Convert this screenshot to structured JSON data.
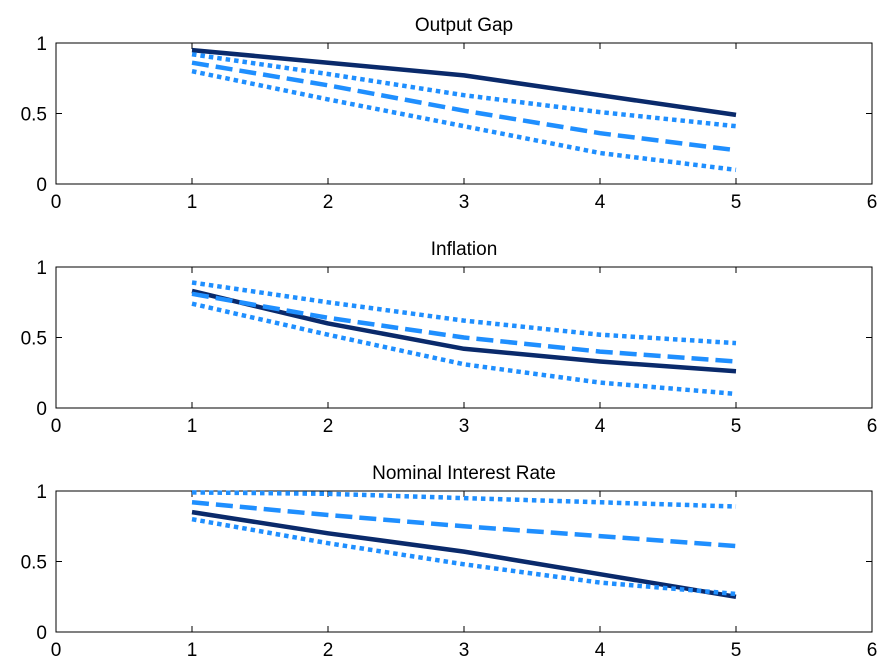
{
  "chart_data": [
    {
      "type": "line",
      "title": "Output Gap",
      "xlim": [
        0,
        6
      ],
      "ylim": [
        0,
        1
      ],
      "xticks": [
        "0",
        "1",
        "2",
        "3",
        "4",
        "5",
        "6"
      ],
      "yticks": [
        "0",
        "0.5",
        "1"
      ],
      "grid": false,
      "x": [
        1,
        2,
        3,
        4,
        5
      ],
      "series": [
        {
          "style": "solid",
          "color": "#0a2a6b",
          "values": [
            0.95,
            0.86,
            0.77,
            0.63,
            0.49
          ]
        },
        {
          "style": "dotted",
          "color": "#1f8fff",
          "values": [
            0.92,
            0.78,
            0.63,
            0.51,
            0.41
          ]
        },
        {
          "style": "dashed",
          "color": "#1f8fff",
          "values": [
            0.86,
            0.7,
            0.52,
            0.36,
            0.24
          ]
        },
        {
          "style": "dotted",
          "color": "#1f8fff",
          "values": [
            0.8,
            0.6,
            0.41,
            0.22,
            0.1
          ]
        }
      ]
    },
    {
      "type": "line",
      "title": "Inflation",
      "xlim": [
        0,
        6
      ],
      "ylim": [
        0,
        1
      ],
      "xticks": [
        "0",
        "1",
        "2",
        "3",
        "4",
        "5",
        "6"
      ],
      "yticks": [
        "0",
        "0.5",
        "1"
      ],
      "grid": false,
      "x": [
        1,
        2,
        3,
        4,
        5
      ],
      "series": [
        {
          "style": "solid",
          "color": "#0a2a6b",
          "values": [
            0.83,
            0.6,
            0.42,
            0.33,
            0.26
          ]
        },
        {
          "style": "dotted",
          "color": "#1f8fff",
          "values": [
            0.89,
            0.75,
            0.62,
            0.52,
            0.46
          ]
        },
        {
          "style": "dashed",
          "color": "#1f8fff",
          "values": [
            0.81,
            0.64,
            0.5,
            0.4,
            0.33
          ]
        },
        {
          "style": "dotted",
          "color": "#1f8fff",
          "values": [
            0.74,
            0.52,
            0.31,
            0.18,
            0.1
          ]
        }
      ]
    },
    {
      "type": "line",
      "title": "Nominal Interest Rate",
      "xlim": [
        0,
        6
      ],
      "ylim": [
        0,
        1
      ],
      "xticks": [
        "0",
        "1",
        "2",
        "3",
        "4",
        "5",
        "6"
      ],
      "yticks": [
        "0",
        "0.5",
        "1"
      ],
      "grid": false,
      "x": [
        1,
        2,
        3,
        4,
        5
      ],
      "series": [
        {
          "style": "solid",
          "color": "#0a2a6b",
          "values": [
            0.85,
            0.7,
            0.57,
            0.41,
            0.25
          ]
        },
        {
          "style": "dotted",
          "color": "#1f8fff",
          "values": [
            0.99,
            0.98,
            0.95,
            0.92,
            0.89
          ]
        },
        {
          "style": "dashed",
          "color": "#1f8fff",
          "values": [
            0.92,
            0.83,
            0.75,
            0.68,
            0.61
          ]
        },
        {
          "style": "dotted",
          "color": "#1f8fff",
          "values": [
            0.8,
            0.63,
            0.48,
            0.35,
            0.27
          ]
        }
      ]
    }
  ]
}
